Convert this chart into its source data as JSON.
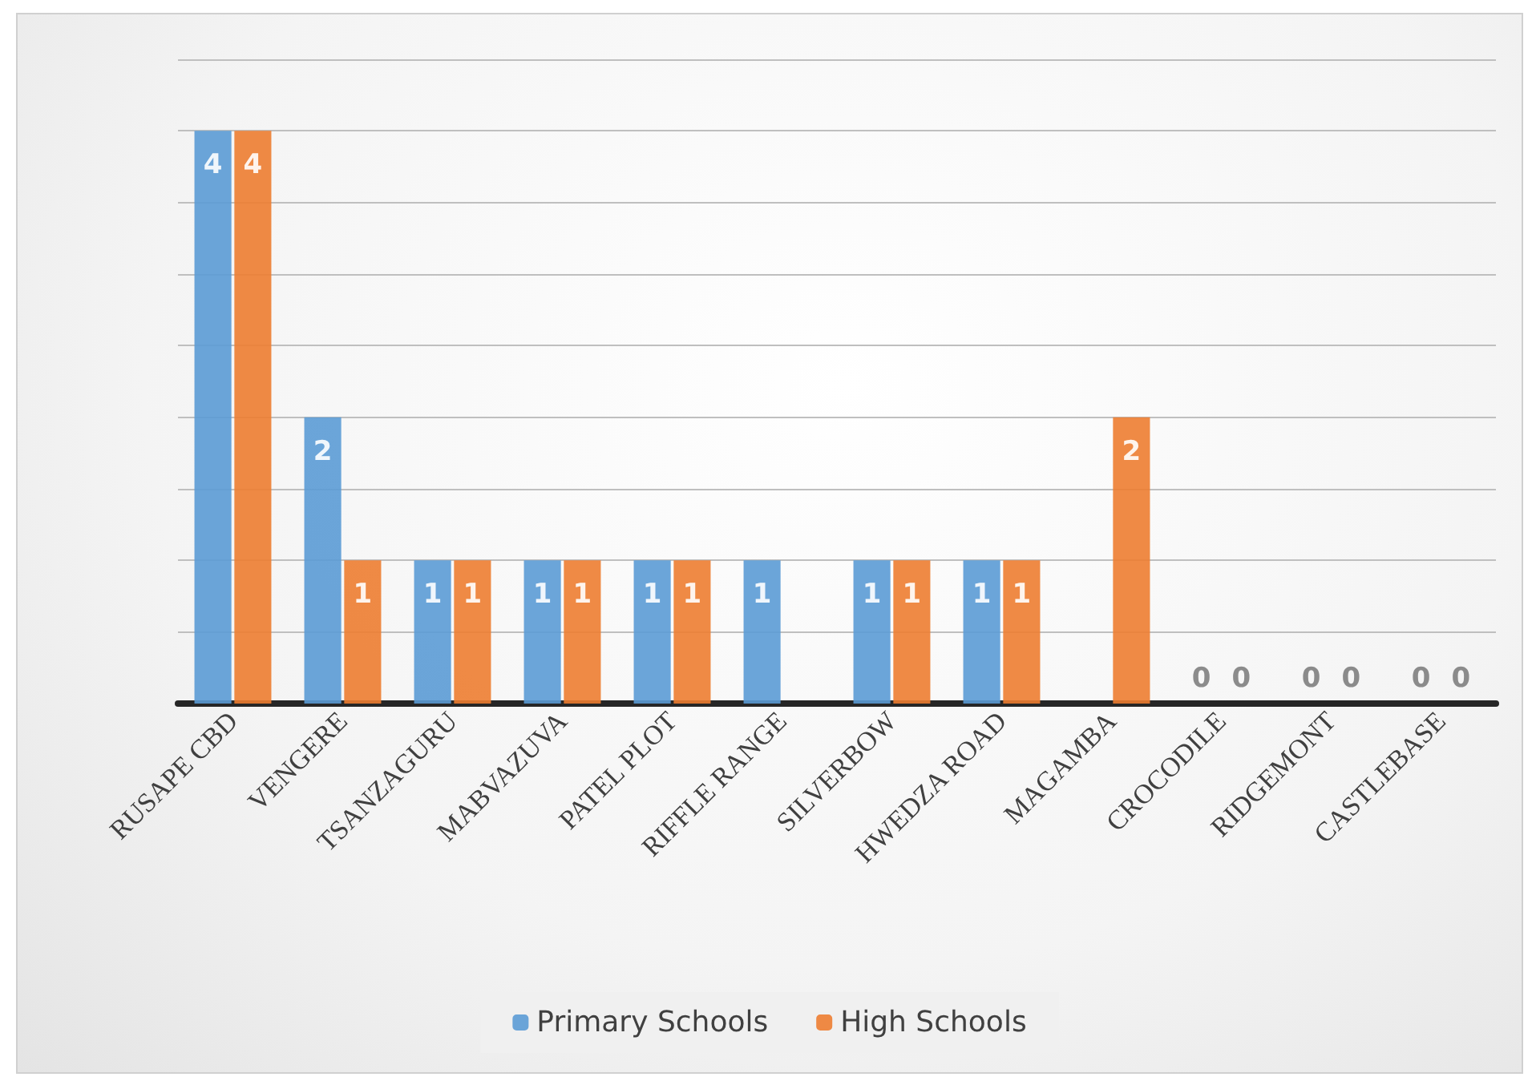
{
  "chart_data": {
    "type": "bar",
    "categories": [
      "RUSAPE CBD",
      "VENGERE",
      "TSANZAGURU",
      "MABVAZUVA",
      "PATEL PLOT",
      "RIFFLE RANGE",
      "SILVERBOW",
      "HWEDZA ROAD",
      "MAGAMBA",
      "CROCODILE",
      "RIDGEMONT",
      "CASTLEBASE"
    ],
    "series": [
      {
        "name": "Primary Schools",
        "color": "#5b9bd5",
        "values": [
          4,
          2,
          1,
          1,
          1,
          1,
          1,
          1,
          null,
          0,
          0,
          0
        ]
      },
      {
        "name": "High Schools",
        "color": "#ed7d31",
        "values": [
          4,
          1,
          1,
          1,
          1,
          null,
          1,
          1,
          2,
          0,
          0,
          0
        ]
      }
    ],
    "ylim": [
      0,
      4.5
    ],
    "yticks": [
      0,
      0.5,
      1,
      1.5,
      2,
      2.5,
      3,
      3.5,
      4,
      4.5
    ],
    "tick_labels": "x",
    "grid": "y",
    "legend": "bottom",
    "data_labels": true
  }
}
